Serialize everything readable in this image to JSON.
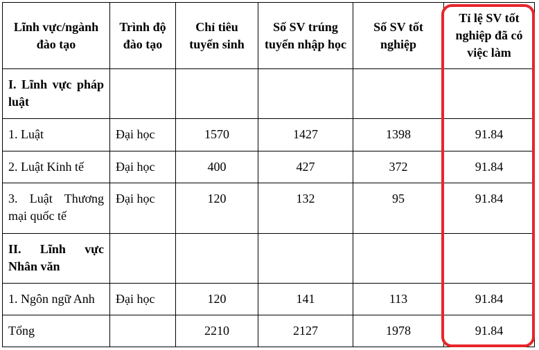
{
  "table": {
    "headers": [
      "Lĩnh vực/ngành đào tạo",
      "Trình độ đào tạo",
      "Chỉ tiêu tuyển sinh",
      "Số SV trúng tuyển nhập học",
      "Số SV tốt nghiệp",
      "Tỉ lệ SV tốt nghiệp đã có việc làm"
    ],
    "rows": [
      {
        "field": "I. Lĩnh vực pháp luật"
      },
      {
        "field": "1. Luật",
        "level": "Đại học",
        "quota": 1570,
        "admitted": 1427,
        "graduated": 1398,
        "employed_rate": 91.84
      },
      {
        "field": "2. Luật Kinh tế",
        "level": "Đại học",
        "quota": 400,
        "admitted": 427,
        "graduated": 372,
        "employed_rate": 91.84
      },
      {
        "field": "3. Luật Thương mại quốc tế",
        "level": "Đại học",
        "quota": 120,
        "admitted": 132,
        "graduated": 95,
        "employed_rate": 91.84
      },
      {
        "field": "II. Lĩnh vực Nhân văn"
      },
      {
        "field": "1. Ngôn ngữ Anh",
        "level": "Đại học",
        "quota": 120,
        "admitted": 141,
        "graduated": 113,
        "employed_rate": 91.84
      },
      {
        "field": "Tổng",
        "quota": 2210,
        "admitted": 2127,
        "graduated": 1978,
        "employed_rate": 91.84
      }
    ]
  }
}
